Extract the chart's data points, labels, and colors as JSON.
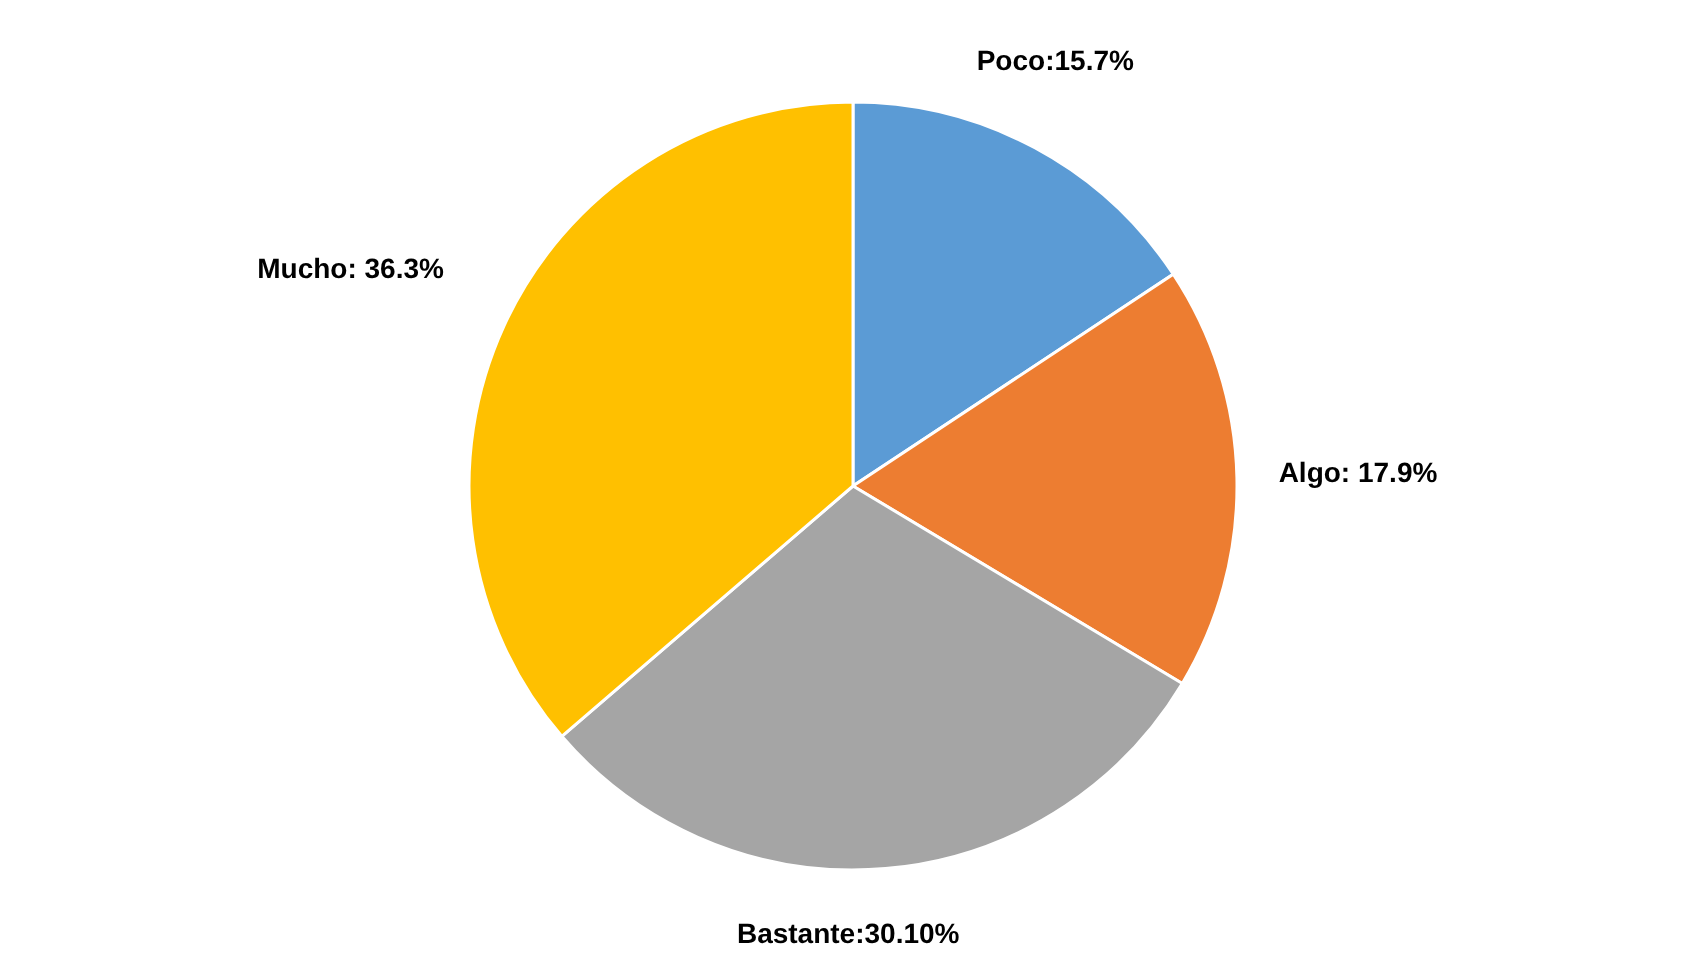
{
  "chart_data": {
    "type": "pie",
    "categories": [
      "Poco",
      "Algo",
      "Bastante",
      "Mucho"
    ],
    "values": [
      15.7,
      17.9,
      30.1,
      36.3
    ],
    "colors": [
      "#5b9bd5",
      "#ed7d31",
      "#a5a5a5",
      "#ffc000"
    ],
    "value_labels": [
      ":15.7%",
      ": 17.9%",
      ":30.10%",
      ": 36.3%"
    ],
    "legend": false
  }
}
